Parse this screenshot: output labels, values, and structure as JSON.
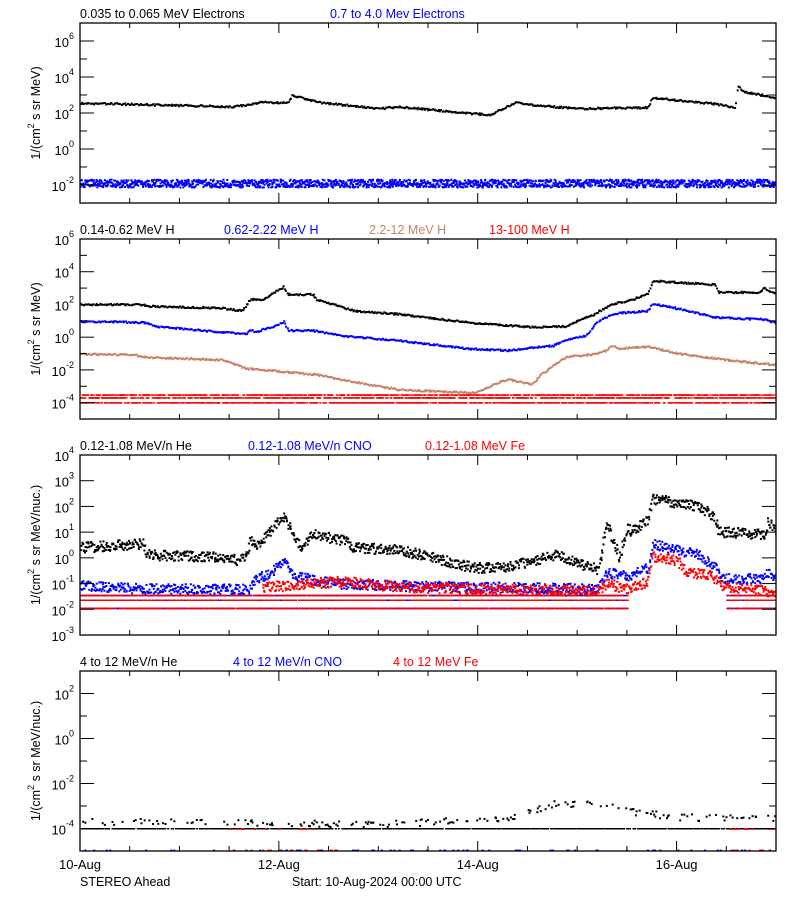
{
  "x_axis": {
    "range": [
      "2024-08-10T00:00",
      "2024-08-17T00:00"
    ],
    "tick_labels": [
      {
        "date": "2024-08-10T00:00",
        "label": "10-Aug"
      },
      {
        "date": "2024-08-12T00:00",
        "label": "12-Aug"
      },
      {
        "date": "2024-08-14T00:00",
        "label": "14-Aug"
      },
      {
        "date": "2024-08-16T00:00",
        "label": "16-Aug"
      }
    ],
    "minor_tick_hours": 12
  },
  "footer": {
    "spacecraft": "STEREO Ahead",
    "start": "Start: 10-Aug-2024 00:00 UTC"
  },
  "colors": {
    "black": "#000000",
    "blue": "#0000ff",
    "brown": "#c8806a",
    "red": "#ff0000"
  },
  "chart_data": [
    {
      "type": "scatter",
      "ylabel": {
        "pre": "1/(cm",
        "sup": "2",
        "post": " s sr MeV)"
      },
      "yscale": "log",
      "ylim": [
        0.001,
        10000000
      ],
      "ytick_exponents": [
        6,
        4,
        2,
        0,
        -2
      ],
      "grid": false,
      "series": [
        {
          "name": "0.035 to 0.065 MeV Electrons",
          "color": "#000000",
          "style": "line",
          "points": [
            [
              "2024-08-10T00:00",
              350
            ],
            [
              "2024-08-11T13:00",
              220
            ],
            [
              "2024-08-11T20:00",
              400
            ],
            [
              "2024-08-12T02:00",
              350
            ],
            [
              "2024-08-12T03:00",
              950
            ],
            [
              "2024-08-12T09:00",
              400
            ],
            [
              "2024-08-13T00:00",
              170
            ],
            [
              "2024-08-13T05:00",
              220
            ],
            [
              "2024-08-13T21:00",
              95
            ],
            [
              "2024-08-14T03:00",
              80
            ],
            [
              "2024-08-14T09:00",
              400
            ],
            [
              "2024-08-14T11:00",
              300
            ],
            [
              "2024-08-15T00:00",
              170
            ],
            [
              "2024-08-15T17:00",
              200
            ],
            [
              "2024-08-15T18:00",
              700
            ],
            [
              "2024-08-16T09:00",
              320
            ],
            [
              "2024-08-16T14:00",
              190
            ],
            [
              "2024-08-16T14:30",
              3000
            ],
            [
              "2024-08-16T16:00",
              1450
            ],
            [
              "2024-08-17T00:00",
              700
            ]
          ]
        },
        {
          "name": "0.7 to 4.0 Mev Electrons",
          "color": "#0000ff",
          "style": "noise",
          "points": [
            [
              "2024-08-10T00:00",
              0.012
            ],
            [
              "2024-08-17T00:00",
              0.012
            ]
          ]
        }
      ]
    },
    {
      "type": "scatter",
      "ylabel": {
        "pre": "1/(cm",
        "sup": "2",
        "post": " s sr MeV)"
      },
      "yscale": "log",
      "ylim": [
        1e-05,
        1000000
      ],
      "ytick_exponents": [
        6,
        4,
        2,
        0,
        -2,
        -4
      ],
      "grid": false,
      "series": [
        {
          "name": "0.14-0.62 MeV H",
          "color": "#000000",
          "style": "line",
          "points": [
            [
              "2024-08-10T00:00",
              100
            ],
            [
              "2024-08-10T15:00",
              95
            ],
            [
              "2024-08-10T17:00",
              75
            ],
            [
              "2024-08-11T10:00",
              60
            ],
            [
              "2024-08-11T15:00",
              40
            ],
            [
              "2024-08-11T17:00",
              200
            ],
            [
              "2024-08-11T20:00",
              200
            ],
            [
              "2024-08-12T01:00",
              1200
            ],
            [
              "2024-08-12T02:00",
              400
            ],
            [
              "2024-08-12T08:00",
              400
            ],
            [
              "2024-08-12T09:00",
              200
            ],
            [
              "2024-08-12T18:00",
              40
            ],
            [
              "2024-08-13T05:00",
              25
            ],
            [
              "2024-08-13T21:00",
              8
            ],
            [
              "2024-08-14T13:00",
              4
            ],
            [
              "2024-08-14T21:00",
              4.5
            ],
            [
              "2024-08-15T04:00",
              25
            ],
            [
              "2024-08-15T08:00",
              100
            ],
            [
              "2024-08-15T13:00",
              180
            ],
            [
              "2024-08-15T17:00",
              500
            ],
            [
              "2024-08-15T18:00",
              2700
            ],
            [
              "2024-08-16T09:00",
              1600
            ],
            [
              "2024-08-16T10:00",
              540
            ],
            [
              "2024-08-16T20:00",
              540
            ],
            [
              "2024-08-16T21:00",
              1000
            ],
            [
              "2024-08-17T00:00",
              400
            ]
          ]
        },
        {
          "name": "0.62-2.22 MeV H",
          "color": "#0000ff",
          "style": "line",
          "points": [
            [
              "2024-08-10T00:00",
              9
            ],
            [
              "2024-08-10T15:00",
              8
            ],
            [
              "2024-08-10T18:00",
              4.5
            ],
            [
              "2024-08-11T16:00",
              1.5
            ],
            [
              "2024-08-11T17:00",
              3
            ],
            [
              "2024-08-11T18:00",
              2
            ],
            [
              "2024-08-11T23:00",
              5
            ],
            [
              "2024-08-12T01:00",
              9
            ],
            [
              "2024-08-12T02:00",
              2.5
            ],
            [
              "2024-08-12T08:00",
              2.5
            ],
            [
              "2024-08-12T15:00",
              1.2
            ],
            [
              "2024-08-13T05:00",
              0.6
            ],
            [
              "2024-08-13T21:00",
              0.2
            ],
            [
              "2024-08-14T07:00",
              0.15
            ],
            [
              "2024-08-14T18:00",
              0.3
            ],
            [
              "2024-08-14T21:00",
              0.7
            ],
            [
              "2024-08-15T02:00",
              1.2
            ],
            [
              "2024-08-15T05:00",
              10
            ],
            [
              "2024-08-15T09:00",
              28
            ],
            [
              "2024-08-15T17:00",
              40
            ],
            [
              "2024-08-15T18:00",
              110
            ],
            [
              "2024-08-16T01:00",
              50
            ],
            [
              "2024-08-16T09:00",
              16
            ],
            [
              "2024-08-16T21:00",
              12
            ],
            [
              "2024-08-17T00:00",
              7
            ]
          ]
        },
        {
          "name": "2.2-12 MeV H",
          "color": "#c8806a",
          "style": "line",
          "points": [
            [
              "2024-08-10T00:00",
              0.09
            ],
            [
              "2024-08-10T13:00",
              0.085
            ],
            [
              "2024-08-10T15:00",
              0.06
            ],
            [
              "2024-08-11T10:00",
              0.04
            ],
            [
              "2024-08-11T16:00",
              0.012
            ],
            [
              "2024-08-12T00:00",
              0.008
            ],
            [
              "2024-08-12T09:00",
              0.005
            ],
            [
              "2024-08-12T18:00",
              0.0018
            ],
            [
              "2024-08-13T05:00",
              0.0006
            ],
            [
              "2024-08-13T23:00",
              0.0004
            ],
            [
              "2024-08-14T07:00",
              0.0027
            ],
            [
              "2024-08-14T13:00",
              0.0013
            ],
            [
              "2024-08-14T15:00",
              0.005
            ],
            [
              "2024-08-14T21:00",
              0.06
            ],
            [
              "2024-08-15T04:00",
              0.09
            ],
            [
              "2024-08-15T07:00",
              0.15
            ],
            [
              "2024-08-15T08:00",
              0.3
            ],
            [
              "2024-08-15T10:00",
              0.2
            ],
            [
              "2024-08-15T17:00",
              0.25
            ],
            [
              "2024-08-16T01:00",
              0.09
            ],
            [
              "2024-08-16T14:00",
              0.035
            ],
            [
              "2024-08-17T00:00",
              0.02
            ]
          ]
        },
        {
          "name": "13-100 MeV H",
          "color": "#ff0000",
          "style": "floor",
          "levels": [
            0.0003,
            0.0002,
            0.0001
          ],
          "segments": [
            [
              "2024-08-10T00:00",
              "2024-08-17T00:00"
            ]
          ]
        }
      ]
    },
    {
      "type": "scatter",
      "ylabel": {
        "pre": "1/(cm",
        "sup": "2",
        "post": " s sr MeV/nuc.)"
      },
      "yscale": "log",
      "ylim": [
        0.001,
        10000
      ],
      "ytick_exponents": [
        4,
        3,
        2,
        1,
        0,
        -1,
        -2,
        -3
      ],
      "grid": false,
      "series": [
        {
          "name": "0.12-1.08 MeV/n He",
          "color": "#000000",
          "style": "scatter",
          "points": [
            [
              "2024-08-10T00:00",
              2.5
            ],
            [
              "2024-08-10T15:00",
              3.5
            ],
            [
              "2024-08-10T16:00",
              1.3
            ],
            [
              "2024-08-11T07:00",
              1.1
            ],
            [
              "2024-08-11T14:00",
              0.8
            ],
            [
              "2024-08-11T16:00",
              1.2
            ],
            [
              "2024-08-11T17:00",
              5
            ],
            [
              "2024-08-11T18:00",
              2.5
            ],
            [
              "2024-08-11T21:00",
              8
            ],
            [
              "2024-08-12T01:00",
              40
            ],
            [
              "2024-08-12T03:00",
              10
            ],
            [
              "2024-08-12T05:00",
              2.5
            ],
            [
              "2024-08-12T08:00",
              8
            ],
            [
              "2024-08-12T16:00",
              4.5
            ],
            [
              "2024-08-12T18:00",
              2.5
            ],
            [
              "2024-08-13T05:00",
              2
            ],
            [
              "2024-08-13T13:00",
              1
            ],
            [
              "2024-08-13T23:00",
              0.4
            ],
            [
              "2024-08-14T07:00",
              0.45
            ],
            [
              "2024-08-14T19:00",
              1.3
            ],
            [
              "2024-08-15T02:00",
              0.45
            ],
            [
              "2024-08-15T05:00",
              0.35
            ],
            [
              "2024-08-15T07:00",
              24
            ],
            [
              "2024-08-15T10:00",
              1
            ],
            [
              "2024-08-15T12:00",
              16
            ],
            [
              "2024-08-15T13:00",
              10
            ],
            [
              "2024-08-15T17:00",
              32
            ],
            [
              "2024-08-15T18:00",
              190
            ],
            [
              "2024-08-16T05:00",
              105
            ],
            [
              "2024-08-16T09:00",
              40
            ],
            [
              "2024-08-16T10:00",
              10
            ],
            [
              "2024-08-16T21:00",
              8
            ],
            [
              "2024-08-16T22:00",
              30
            ],
            [
              "2024-08-17T00:00",
              8
            ]
          ]
        },
        {
          "name": "0.12-1.08 MeV/n CNO",
          "color": "#0000ff",
          "style": "scatter",
          "points": [
            [
              "2024-08-10T00:00",
              0.08
            ],
            [
              "2024-08-10T15:00",
              0.06
            ],
            [
              "2024-08-11T17:00",
              0.06
            ],
            [
              "2024-08-11T18:00",
              0.14
            ],
            [
              "2024-08-11T22:00",
              0.25
            ],
            [
              "2024-08-12T01:00",
              0.85
            ],
            [
              "2024-08-12T03:00",
              0.2
            ],
            [
              "2024-08-12T13:00",
              0.1
            ],
            [
              "2024-08-13T05:00",
              0.08
            ],
            [
              "2024-08-15T05:00",
              0.06
            ],
            [
              "2024-08-15T07:00",
              0.25
            ],
            [
              "2024-08-15T12:00",
              0.2
            ],
            [
              "2024-08-15T17:00",
              0.4
            ],
            [
              "2024-08-15T18:00",
              3.3
            ],
            [
              "2024-08-16T05:00",
              1.3
            ],
            [
              "2024-08-16T09:00",
              0.45
            ],
            [
              "2024-08-16T11:00",
              0.15
            ],
            [
              "2024-08-16T21:00",
              0.15
            ],
            [
              "2024-08-16T22:00",
              0.3
            ],
            [
              "2024-08-17T00:00",
              0.15
            ]
          ]
        },
        {
          "name": "0.12-1.08 MeV Fe",
          "color": "#ff0000",
          "style": "scatter",
          "points": [
            [
              "2024-08-11T20:00",
              0.07
            ],
            [
              "2024-08-12T15:00",
              0.12
            ],
            [
              "2024-08-13T05:00",
              0.07
            ],
            [
              "2024-08-15T05:00",
              0.05
            ],
            [
              "2024-08-15T07:00",
              0.1
            ],
            [
              "2024-08-15T12:00",
              0.06
            ],
            [
              "2024-08-15T17:00",
              0.12
            ],
            [
              "2024-08-15T18:00",
              1.1
            ],
            [
              "2024-08-16T00:00",
              0.8
            ],
            [
              "2024-08-16T02:00",
              0.3
            ],
            [
              "2024-08-16T08:00",
              0.2
            ],
            [
              "2024-08-16T11:00",
              0.08
            ],
            [
              "2024-08-17T00:00",
              0.045
            ]
          ]
        },
        {
          "name": "",
          "color": "#0000ff",
          "style": "floor",
          "levels": [
            0.035,
            0.023,
            0.011
          ],
          "segments": [
            [
              "2024-08-10T00:00",
              "2024-08-15T12:00"
            ],
            [
              "2024-08-16T12:00",
              "2024-08-17T00:00"
            ]
          ]
        },
        {
          "name": "",
          "color": "#ff0000",
          "style": "floor",
          "levels": [
            0.035,
            0.023,
            0.011
          ],
          "segments": [
            [
              "2024-08-10T00:00",
              "2024-08-15T12:00"
            ],
            [
              "2024-08-16T12:00",
              "2024-08-17T00:00"
            ]
          ]
        }
      ]
    },
    {
      "type": "scatter",
      "ylabel": {
        "pre": "1/(cm",
        "sup": "2",
        "post": " s sr MeV/nuc.)"
      },
      "yscale": "log",
      "ylim": [
        1e-05,
        1000
      ],
      "ytick_exponents": [
        2,
        0,
        -2,
        -4
      ],
      "grid": false,
      "series": [
        {
          "name": "4 to 12 MeV/n He",
          "color": "#000000",
          "style": "sparse",
          "points": [
            [
              "2024-08-10T00:00",
              0.0002
            ],
            [
              "2024-08-11T12:00",
              0.00018
            ],
            [
              "2024-08-13T00:00",
              0.00015
            ],
            [
              "2024-08-14T07:00",
              0.00027
            ],
            [
              "2024-08-14T18:00",
              0.0012
            ],
            [
              "2024-08-15T04:00",
              0.0013
            ],
            [
              "2024-08-15T12:00",
              0.0006
            ],
            [
              "2024-08-16T00:00",
              0.0003
            ],
            [
              "2024-08-17T00:00",
              0.0003
            ]
          ]
        },
        {
          "name": "",
          "color": "#000000",
          "style": "floor",
          "levels": [
            0.0001
          ],
          "segments": [
            [
              "2024-08-10T00:00",
              "2024-08-17T00:00"
            ]
          ]
        },
        {
          "name": "4 to 12 MeV/n CNO",
          "color": "#0000ff",
          "style": "rare",
          "levels": [
            1.1e-05
          ],
          "segments": [
            [
              "2024-08-10T00:00",
              "2024-08-17T00:00"
            ]
          ]
        },
        {
          "name": "4 to 12 MeV Fe",
          "color": "#ff0000",
          "style": "rare",
          "levels": [
            1.1e-05,
            0.0001
          ],
          "segments": [
            [
              "2024-08-11T12:00",
              "2024-08-12T16:00"
            ],
            [
              "2024-08-16T12:00",
              "2024-08-17T00:00"
            ]
          ]
        }
      ]
    }
  ]
}
